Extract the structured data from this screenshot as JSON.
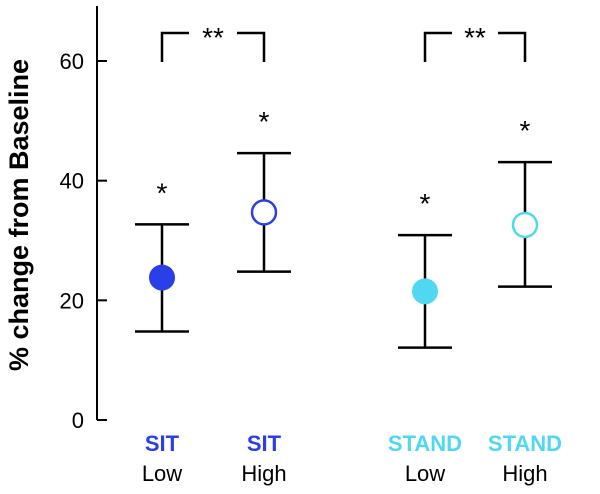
{
  "chart_data": {
    "type": "scatter",
    "title": "",
    "ylabel": "% change from Baseline",
    "xlabel": "",
    "ylim": [
      0,
      70
    ],
    "yticks": [
      0,
      20,
      40,
      60
    ],
    "grid": false,
    "colors": {
      "sit": "#2a3fe8",
      "stand": "#4fd8f0",
      "axis": "#000000"
    },
    "points": [
      {
        "condition": "SIT",
        "level": "Low",
        "mean": 23.8,
        "lower": 14.8,
        "upper": 32.7,
        "fill": "filled",
        "color_key": "sit",
        "significance": "*"
      },
      {
        "condition": "SIT",
        "level": "High",
        "mean": 34.7,
        "lower": 24.8,
        "upper": 44.6,
        "fill": "open",
        "color_key": "sit",
        "significance": "*"
      },
      {
        "condition": "STAND",
        "level": "Low",
        "mean": 21.5,
        "lower": 12.1,
        "upper": 30.9,
        "fill": "filled",
        "color_key": "stand",
        "significance": "*"
      },
      {
        "condition": "STAND",
        "level": "High",
        "mean": 32.6,
        "lower": 22.3,
        "upper": 43.1,
        "fill": "open",
        "color_key": "stand",
        "significance": "*"
      }
    ],
    "brackets": [
      {
        "from": 0,
        "to": 1,
        "label": "**"
      },
      {
        "from": 2,
        "to": 3,
        "label": "**"
      }
    ]
  }
}
